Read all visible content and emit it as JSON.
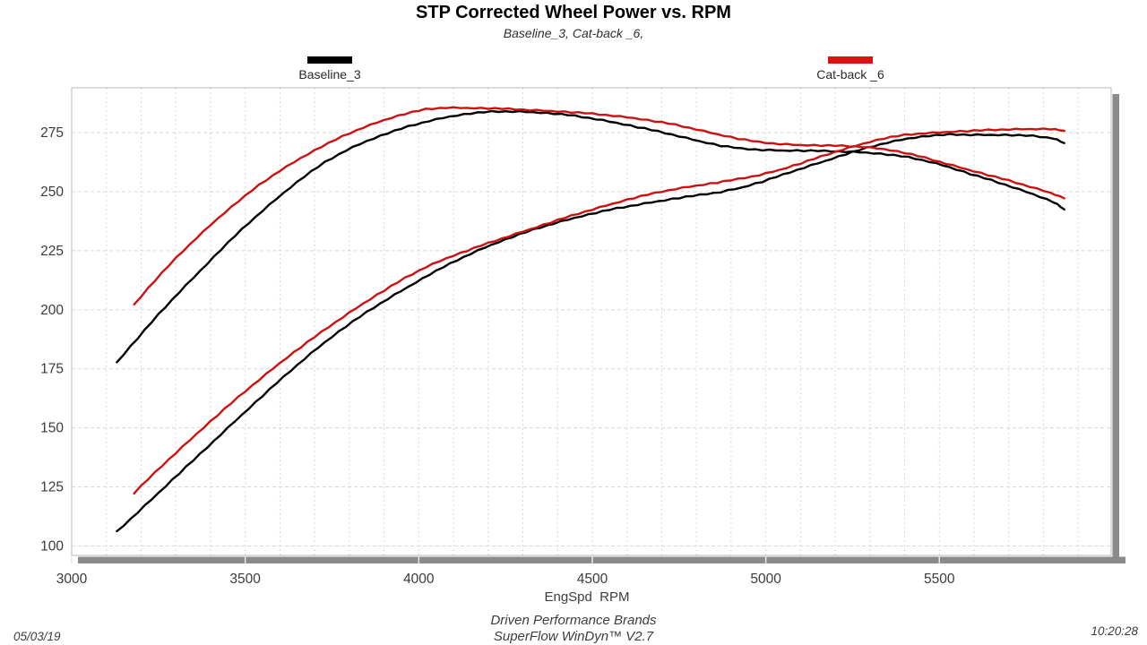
{
  "title": "STP Corrected Wheel Power vs. RPM",
  "subtitle": "Baseline_3, Cat-back _6,",
  "legend": [
    {
      "label": "Baseline_3",
      "color": "#000000"
    },
    {
      "label": "Cat-back _6",
      "color": "#cc1111"
    }
  ],
  "footer": {
    "date": "05/03/19",
    "time": "10:20:28",
    "brand_line": "Driven Performance Brands",
    "software_line": "SuperFlow WinDyn™ V2.7"
  },
  "chart_data": {
    "type": "line",
    "title": "STP Corrected Wheel Power vs. RPM",
    "xlabel": "EngSpd  RPM",
    "ylabel": "",
    "xlim": [
      3000,
      5995
    ],
    "ylim": [
      96,
      294
    ],
    "xticks": [
      3000,
      3500,
      4000,
      4500,
      5000,
      5500
    ],
    "yticks": [
      100,
      125,
      150,
      175,
      200,
      225,
      250,
      275
    ],
    "grid": "dashed, vertical every 100 RPM, horizontal every 25",
    "legend_position": "top",
    "colors": {
      "grid": "#d8d8d8",
      "frame": "#b8b8b8",
      "shadow": "#8a8a8a",
      "tick_text": "#3b3b3b"
    },
    "series": [
      {
        "name": "Baseline_3 torque",
        "color": "#000000",
        "points": [
          [
            3130,
            177.8
          ],
          [
            3190,
            188.0
          ],
          [
            3250,
            198.0
          ],
          [
            3310,
            207.5
          ],
          [
            3370,
            216.5
          ],
          [
            3430,
            225.5
          ],
          [
            3490,
            234.0
          ],
          [
            3550,
            242.0
          ],
          [
            3610,
            249.5
          ],
          [
            3670,
            256.5
          ],
          [
            3730,
            262.5
          ],
          [
            3790,
            267.5
          ],
          [
            3850,
            271.5
          ],
          [
            3910,
            274.8
          ],
          [
            3970,
            277.6
          ],
          [
            4030,
            280.0
          ],
          [
            4090,
            281.9
          ],
          [
            4150,
            283.2
          ],
          [
            4210,
            283.9
          ],
          [
            4270,
            284.0
          ],
          [
            4330,
            283.7
          ],
          [
            4390,
            283.1
          ],
          [
            4450,
            282.1
          ],
          [
            4510,
            280.8
          ],
          [
            4570,
            279.2
          ],
          [
            4630,
            277.4
          ],
          [
            4690,
            275.5
          ],
          [
            4750,
            273.5
          ],
          [
            4810,
            271.4
          ],
          [
            4870,
            269.5
          ],
          [
            4930,
            268.2
          ],
          [
            4990,
            267.7
          ],
          [
            5050,
            267.5
          ],
          [
            5110,
            267.4
          ],
          [
            5170,
            267.2
          ],
          [
            5230,
            267.0
          ],
          [
            5290,
            266.6
          ],
          [
            5350,
            265.8
          ],
          [
            5410,
            264.6
          ],
          [
            5470,
            262.8
          ],
          [
            5530,
            260.4
          ],
          [
            5590,
            257.5
          ],
          [
            5650,
            254.8
          ],
          [
            5710,
            252.0
          ],
          [
            5770,
            249.0
          ],
          [
            5830,
            245.6
          ],
          [
            5860,
            242.5
          ]
        ]
      },
      {
        "name": "Baseline_3 power",
        "color": "#000000",
        "points": [
          [
            3130,
            106.0
          ],
          [
            3190,
            114.2
          ],
          [
            3250,
            122.5
          ],
          [
            3310,
            130.8
          ],
          [
            3370,
            138.9
          ],
          [
            3430,
            147.3
          ],
          [
            3490,
            155.5
          ],
          [
            3550,
            163.6
          ],
          [
            3610,
            171.5
          ],
          [
            3670,
            179.2
          ],
          [
            3730,
            186.4
          ],
          [
            3790,
            193.0
          ],
          [
            3850,
            199.0
          ],
          [
            3910,
            204.6
          ],
          [
            3970,
            209.8
          ],
          [
            4030,
            214.9
          ],
          [
            4090,
            219.5
          ],
          [
            4150,
            223.8
          ],
          [
            4210,
            227.6
          ],
          [
            4270,
            230.9
          ],
          [
            4330,
            233.9
          ],
          [
            4390,
            236.6
          ],
          [
            4450,
            239.0
          ],
          [
            4510,
            241.1
          ],
          [
            4570,
            242.9
          ],
          [
            4630,
            244.5
          ],
          [
            4690,
            246.0
          ],
          [
            4750,
            247.4
          ],
          [
            4810,
            248.6
          ],
          [
            4870,
            249.9
          ],
          [
            4930,
            251.8
          ],
          [
            4990,
            254.3
          ],
          [
            5050,
            257.2
          ],
          [
            5110,
            260.2
          ],
          [
            5170,
            263.0
          ],
          [
            5230,
            265.9
          ],
          [
            5290,
            268.5
          ],
          [
            5350,
            270.8
          ],
          [
            5410,
            272.6
          ],
          [
            5470,
            273.7
          ],
          [
            5530,
            274.2
          ],
          [
            5590,
            274.1
          ],
          [
            5650,
            274.1
          ],
          [
            5710,
            274.0
          ],
          [
            5770,
            273.6
          ],
          [
            5830,
            272.6
          ],
          [
            5860,
            270.6
          ]
        ]
      },
      {
        "name": "Cat-back _6 torque",
        "color": "#cc1111",
        "points": [
          [
            3180,
            202.3
          ],
          [
            3240,
            212.5
          ],
          [
            3300,
            221.8
          ],
          [
            3360,
            230.5
          ],
          [
            3420,
            238.6
          ],
          [
            3480,
            246.0
          ],
          [
            3540,
            252.8
          ],
          [
            3600,
            258.9
          ],
          [
            3660,
            264.3
          ],
          [
            3720,
            269.1
          ],
          [
            3780,
            273.4
          ],
          [
            3840,
            277.2
          ],
          [
            3900,
            280.4
          ],
          [
            3960,
            283.0
          ],
          [
            4020,
            284.9
          ],
          [
            4080,
            285.6
          ],
          [
            4140,
            285.5
          ],
          [
            4200,
            285.3
          ],
          [
            4260,
            285.0
          ],
          [
            4320,
            284.6
          ],
          [
            4380,
            284.2
          ],
          [
            4440,
            283.7
          ],
          [
            4500,
            283.0
          ],
          [
            4560,
            282.2
          ],
          [
            4620,
            281.2
          ],
          [
            4680,
            279.9
          ],
          [
            4740,
            278.3
          ],
          [
            4800,
            276.4
          ],
          [
            4860,
            274.4
          ],
          [
            4920,
            272.5
          ],
          [
            4980,
            271.0
          ],
          [
            5040,
            270.2
          ],
          [
            5100,
            269.8
          ],
          [
            5160,
            269.6
          ],
          [
            5220,
            269.4
          ],
          [
            5280,
            269.0
          ],
          [
            5340,
            268.1
          ],
          [
            5400,
            266.5
          ],
          [
            5460,
            264.3
          ],
          [
            5520,
            261.9
          ],
          [
            5580,
            259.5
          ],
          [
            5640,
            257.1
          ],
          [
            5700,
            254.7
          ],
          [
            5760,
            252.2
          ],
          [
            5820,
            249.6
          ],
          [
            5860,
            247.2
          ]
        ]
      },
      {
        "name": "Cat-back _6 power",
        "color": "#cc1111",
        "points": [
          [
            3180,
            122.5
          ],
          [
            3240,
            131.1
          ],
          [
            3300,
            139.4
          ],
          [
            3360,
            147.5
          ],
          [
            3420,
            155.4
          ],
          [
            3480,
            163.0
          ],
          [
            3540,
            170.4
          ],
          [
            3600,
            177.5
          ],
          [
            3660,
            184.2
          ],
          [
            3720,
            190.6
          ],
          [
            3780,
            196.8
          ],
          [
            3840,
            202.7
          ],
          [
            3900,
            208.2
          ],
          [
            3960,
            213.4
          ],
          [
            4020,
            218.1
          ],
          [
            4080,
            221.9
          ],
          [
            4140,
            225.1
          ],
          [
            4200,
            228.2
          ],
          [
            4260,
            231.2
          ],
          [
            4320,
            234.1
          ],
          [
            4380,
            237.0
          ],
          [
            4440,
            239.8
          ],
          [
            4500,
            242.5
          ],
          [
            4560,
            245.0
          ],
          [
            4620,
            247.4
          ],
          [
            4680,
            249.4
          ],
          [
            4740,
            251.2
          ],
          [
            4800,
            252.6
          ],
          [
            4860,
            253.9
          ],
          [
            4920,
            255.3
          ],
          [
            4980,
            257.0
          ],
          [
            5040,
            259.3
          ],
          [
            5100,
            262.0
          ],
          [
            5160,
            264.9
          ],
          [
            5220,
            267.8
          ],
          [
            5280,
            270.4
          ],
          [
            5340,
            272.6
          ],
          [
            5400,
            274.0
          ],
          [
            5460,
            274.8
          ],
          [
            5520,
            275.3
          ],
          [
            5580,
            275.7
          ],
          [
            5640,
            276.1
          ],
          [
            5700,
            276.4
          ],
          [
            5760,
            276.6
          ],
          [
            5820,
            276.6
          ],
          [
            5860,
            275.8
          ]
        ]
      }
    ]
  }
}
